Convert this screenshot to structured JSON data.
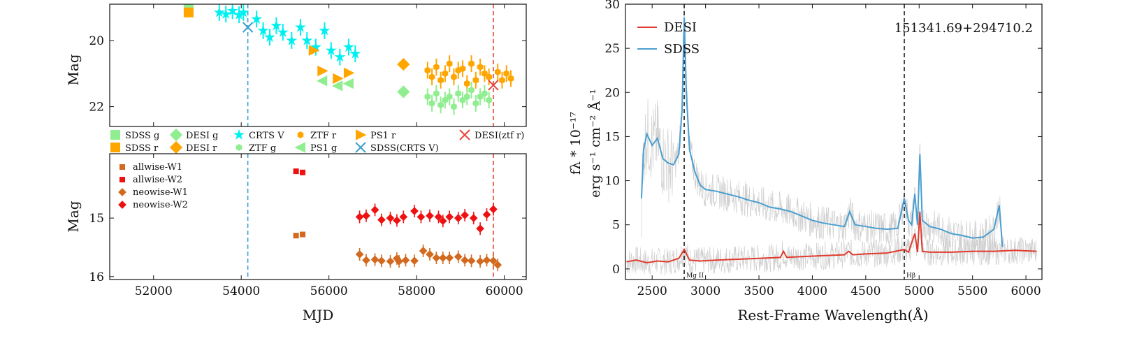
{
  "chart_data": [
    {
      "id": "top-left",
      "type": "scatter",
      "ylabel": "Mag",
      "xlim": [
        51000,
        60500
      ],
      "ylim": [
        18.9,
        22.6
      ],
      "y_inverted": true,
      "xticks": [
        52000,
        54000,
        56000,
        58000,
        60000
      ],
      "yticks": [
        20,
        22
      ],
      "vlines": [
        {
          "x": 54150,
          "color": "#3aa0d0",
          "style": "dashed"
        },
        {
          "x": 59750,
          "color": "#e8463a",
          "style": "dashed"
        }
      ],
      "series": [
        {
          "name": "SDSS g",
          "marker": "square",
          "color": "#90ee90",
          "points": [
            [
              52800,
              18.98
            ]
          ]
        },
        {
          "name": "SDSS r",
          "marker": "square",
          "color": "#ffa500",
          "points": [
            [
              52800,
              19.15
            ]
          ]
        },
        {
          "name": "DESI g",
          "marker": "diamond",
          "color": "#90ee90",
          "points": [
            [
              57700,
              21.55
            ]
          ]
        },
        {
          "name": "DESI r",
          "marker": "diamond",
          "color": "#ffa500",
          "points": [
            [
              57700,
              20.72
            ]
          ]
        },
        {
          "name": "CRTS V",
          "marker": "star",
          "color": "#00f0f0",
          "points": [
            [
              53500,
              19.15
            ],
            [
              53650,
              19.2
            ],
            [
              53800,
              19.1
            ],
            [
              53950,
              19.22
            ],
            [
              54050,
              19.15
            ],
            [
              54350,
              19.35
            ],
            [
              54500,
              19.7
            ],
            [
              54650,
              19.9
            ],
            [
              54800,
              19.55
            ],
            [
              54950,
              19.75
            ],
            [
              55150,
              20.0
            ],
            [
              55350,
              19.6
            ],
            [
              55500,
              20.0
            ],
            [
              55700,
              20.2
            ],
            [
              55900,
              19.7
            ],
            [
              56050,
              20.3
            ],
            [
              56250,
              20.5
            ],
            [
              56450,
              20.2
            ],
            [
              56600,
              20.4
            ]
          ]
        },
        {
          "name": "ZTF r",
          "marker": "hexagon",
          "color": "#ffa500",
          "points": [
            [
              58250,
              20.9
            ],
            [
              58350,
              21.1
            ],
            [
              58450,
              20.8
            ],
            [
              58550,
              21.2
            ],
            [
              58650,
              21.0
            ],
            [
              58750,
              20.7
            ],
            [
              58850,
              21.1
            ],
            [
              58950,
              20.9
            ],
            [
              59050,
              20.85
            ],
            [
              59150,
              21.3
            ],
            [
              59250,
              20.7
            ],
            [
              59350,
              21.2
            ],
            [
              59450,
              20.8
            ],
            [
              59550,
              21.0
            ],
            [
              59650,
              21.1
            ],
            [
              59850,
              20.95
            ],
            [
              59950,
              21.2
            ],
            [
              60050,
              21.0
            ],
            [
              60150,
              21.15
            ]
          ]
        },
        {
          "name": "ZTF g",
          "marker": "hexagon",
          "color": "#90ee90",
          "points": [
            [
              58250,
              21.7
            ],
            [
              58350,
              21.9
            ],
            [
              58450,
              21.6
            ],
            [
              58550,
              21.95
            ],
            [
              58650,
              21.8
            ],
            [
              58750,
              21.7
            ],
            [
              58850,
              22.0
            ],
            [
              58950,
              21.6
            ],
            [
              59050,
              21.8
            ],
            [
              59150,
              21.7
            ],
            [
              59250,
              21.5
            ],
            [
              59350,
              21.9
            ],
            [
              59450,
              21.7
            ],
            [
              59550,
              21.6
            ],
            [
              59650,
              21.8
            ]
          ]
        },
        {
          "name": "PS1 g",
          "marker": "triangle-left",
          "color": "#90ee90",
          "points": [
            [
              55850,
              21.22
            ],
            [
              56200,
              21.37
            ],
            [
              56450,
              21.3
            ]
          ]
        },
        {
          "name": "PS1 r",
          "marker": "triangle-right",
          "color": "#ffa500",
          "points": [
            [
              55850,
              20.92
            ],
            [
              56200,
              21.15
            ],
            [
              56450,
              20.98
            ]
          ]
        },
        {
          "name": "SDSS(CRTS V)",
          "marker": "x",
          "color": "#3aa0d0",
          "points": [
            [
              54150,
              19.6
            ]
          ]
        },
        {
          "name": "DESI(ztf r)",
          "marker": "x",
          "color": "#e8463a",
          "points": [
            [
              59750,
              21.35
            ]
          ]
        }
      ],
      "extra_points": [
        {
          "series": "ZTF r",
          "marker": "triangle-right",
          "color": "#ffa500",
          "points": [
            [
              55650,
              20.3
            ]
          ]
        }
      ],
      "legend": {
        "placement": "below",
        "entries": [
          "SDSS g",
          "SDSS r",
          "DESI g",
          "DESI r",
          "CRTS V",
          "ZTF g",
          "ZTF r",
          "PS1 g",
          "PS1 r",
          "SDSS(CRTS V)",
          "DESI(ztf r)"
        ]
      }
    },
    {
      "id": "bottom-left",
      "type": "scatter",
      "xlabel": "MJD",
      "ylabel": "Mag",
      "xlim": [
        51000,
        60500
      ],
      "ylim": [
        13.9,
        16.05
      ],
      "y_inverted": true,
      "xticks": [
        52000,
        54000,
        56000,
        58000,
        60000
      ],
      "yticks": [
        15,
        16
      ],
      "vlines": [
        {
          "x": 54150,
          "color": "#3aa0d0",
          "style": "dashed"
        },
        {
          "x": 59750,
          "color": "#e8463a",
          "style": "dashed"
        }
      ],
      "series": [
        {
          "name": "allwise-W1",
          "marker": "square",
          "color": "#d2691e",
          "points": [
            [
              55250,
              15.3
            ],
            [
              55400,
              15.28
            ]
          ]
        },
        {
          "name": "allwise-W2",
          "marker": "square",
          "color": "#ee1111",
          "points": [
            [
              55250,
              14.2
            ],
            [
              55400,
              14.22
            ]
          ]
        },
        {
          "name": "neowise-W1",
          "marker": "diamond",
          "color": "#d2691e",
          "points": [
            [
              56700,
              15.62
            ],
            [
              56850,
              15.72
            ],
            [
              57050,
              15.71
            ],
            [
              57200,
              15.73
            ],
            [
              57400,
              15.74
            ],
            [
              57550,
              15.69
            ],
            [
              57600,
              15.74
            ],
            [
              57750,
              15.72
            ],
            [
              57950,
              15.73
            ],
            [
              58150,
              15.56
            ],
            [
              58300,
              15.62
            ],
            [
              58450,
              15.68
            ],
            [
              58600,
              15.68
            ],
            [
              58750,
              15.68
            ],
            [
              58950,
              15.66
            ],
            [
              59100,
              15.72
            ],
            [
              59250,
              15.73
            ],
            [
              59450,
              15.74
            ],
            [
              59600,
              15.72
            ],
            [
              59750,
              15.73
            ],
            [
              59850,
              15.8
            ]
          ]
        },
        {
          "name": "neowise-W2",
          "marker": "diamond",
          "color": "#ee1111",
          "points": [
            [
              56700,
              14.98
            ],
            [
              56850,
              14.96
            ],
            [
              57050,
              14.86
            ],
            [
              57200,
              15.03
            ],
            [
              57400,
              15.0
            ],
            [
              57550,
              15.04
            ],
            [
              57700,
              14.98
            ],
            [
              57950,
              14.88
            ],
            [
              58100,
              14.98
            ],
            [
              58300,
              14.96
            ],
            [
              58500,
              14.98
            ],
            [
              58600,
              15.05
            ],
            [
              58750,
              14.98
            ],
            [
              58950,
              15.0
            ],
            [
              59100,
              14.95
            ],
            [
              59300,
              15.0
            ],
            [
              59450,
              15.18
            ],
            [
              59600,
              14.94
            ],
            [
              59750,
              14.85
            ]
          ]
        }
      ],
      "legend": {
        "placement": "upper-left",
        "entries": [
          "allwise-W1",
          "allwise-W2",
          "neowise-W1",
          "neowise-W2"
        ]
      }
    },
    {
      "id": "right",
      "type": "line",
      "title": "151341.69+294710.2",
      "xlabel": "Rest-Frame Wavelength(Å)",
      "ylabel": "f_λ * 10^-17 erg s^-1 cm^-2 Å^-1",
      "ylabel_line1": "fλ * 10⁻¹⁷",
      "ylabel_line2": "erg s⁻¹ cm⁻² Å⁻¹",
      "xlim": [
        2250,
        6150
      ],
      "ylim": [
        -1.2,
        30
      ],
      "xticks": [
        2500,
        3000,
        3500,
        4000,
        4500,
        5000,
        5500,
        6000
      ],
      "yticks": [
        0,
        5,
        10,
        15,
        20,
        25,
        30
      ],
      "annotations": [
        {
          "x": 2800,
          "label": "Mg II"
        },
        {
          "x": 4861,
          "label": "Hβ"
        }
      ],
      "series": [
        {
          "name": "DESI",
          "color": "#e03b2e",
          "x": [
            2260,
            2350,
            2450,
            2550,
            2650,
            2750,
            2800,
            2850,
            2950,
            3100,
            3300,
            3500,
            3700,
            3730,
            3760,
            3900,
            4100,
            4300,
            4340,
            4380,
            4500,
            4700,
            4861,
            4900,
            4959,
            4985,
            5007,
            5030,
            5100,
            5300,
            5500,
            5700,
            5900,
            6100
          ],
          "y": [
            0.8,
            1.0,
            0.7,
            0.9,
            0.8,
            1.2,
            2.2,
            1.0,
            0.9,
            1.0,
            1.1,
            1.2,
            1.3,
            2.0,
            1.3,
            1.4,
            1.5,
            1.6,
            2.0,
            1.6,
            1.7,
            1.8,
            2.2,
            1.9,
            4.0,
            1.9,
            6.5,
            2.0,
            1.9,
            1.9,
            2.0,
            2.0,
            2.1,
            2.0
          ]
        },
        {
          "name": "SDSS",
          "color": "#4a9fd0",
          "x": [
            2400,
            2420,
            2450,
            2500,
            2550,
            2600,
            2650,
            2700,
            2750,
            2780,
            2800,
            2820,
            2850,
            2900,
            2950,
            3000,
            3100,
            3200,
            3300,
            3400,
            3500,
            3600,
            3700,
            3800,
            3900,
            4000,
            4100,
            4200,
            4300,
            4350,
            4400,
            4500,
            4600,
            4700,
            4800,
            4861,
            4900,
            4930,
            4959,
            4985,
            5007,
            5030,
            5100,
            5200,
            5300,
            5400,
            5500,
            5600,
            5700,
            5750,
            5780
          ],
          "y": [
            8.0,
            13.5,
            15.3,
            14.0,
            14.8,
            12.5,
            12.0,
            11.8,
            13.0,
            18.0,
            28.5,
            20.0,
            13.5,
            11.0,
            9.5,
            9.0,
            8.8,
            8.5,
            8.2,
            7.8,
            7.5,
            7.0,
            6.8,
            6.5,
            6.0,
            5.5,
            5.2,
            5.0,
            4.8,
            6.5,
            5.0,
            4.8,
            4.6,
            4.5,
            4.6,
            8.0,
            5.5,
            5.0,
            8.5,
            5.0,
            13.0,
            5.5,
            4.8,
            4.5,
            4.0,
            3.8,
            3.5,
            3.6,
            4.5,
            7.2,
            2.5
          ]
        }
      ],
      "legend": {
        "placement": "upper-left",
        "entries": [
          "DESI",
          "SDSS"
        ]
      }
    }
  ]
}
